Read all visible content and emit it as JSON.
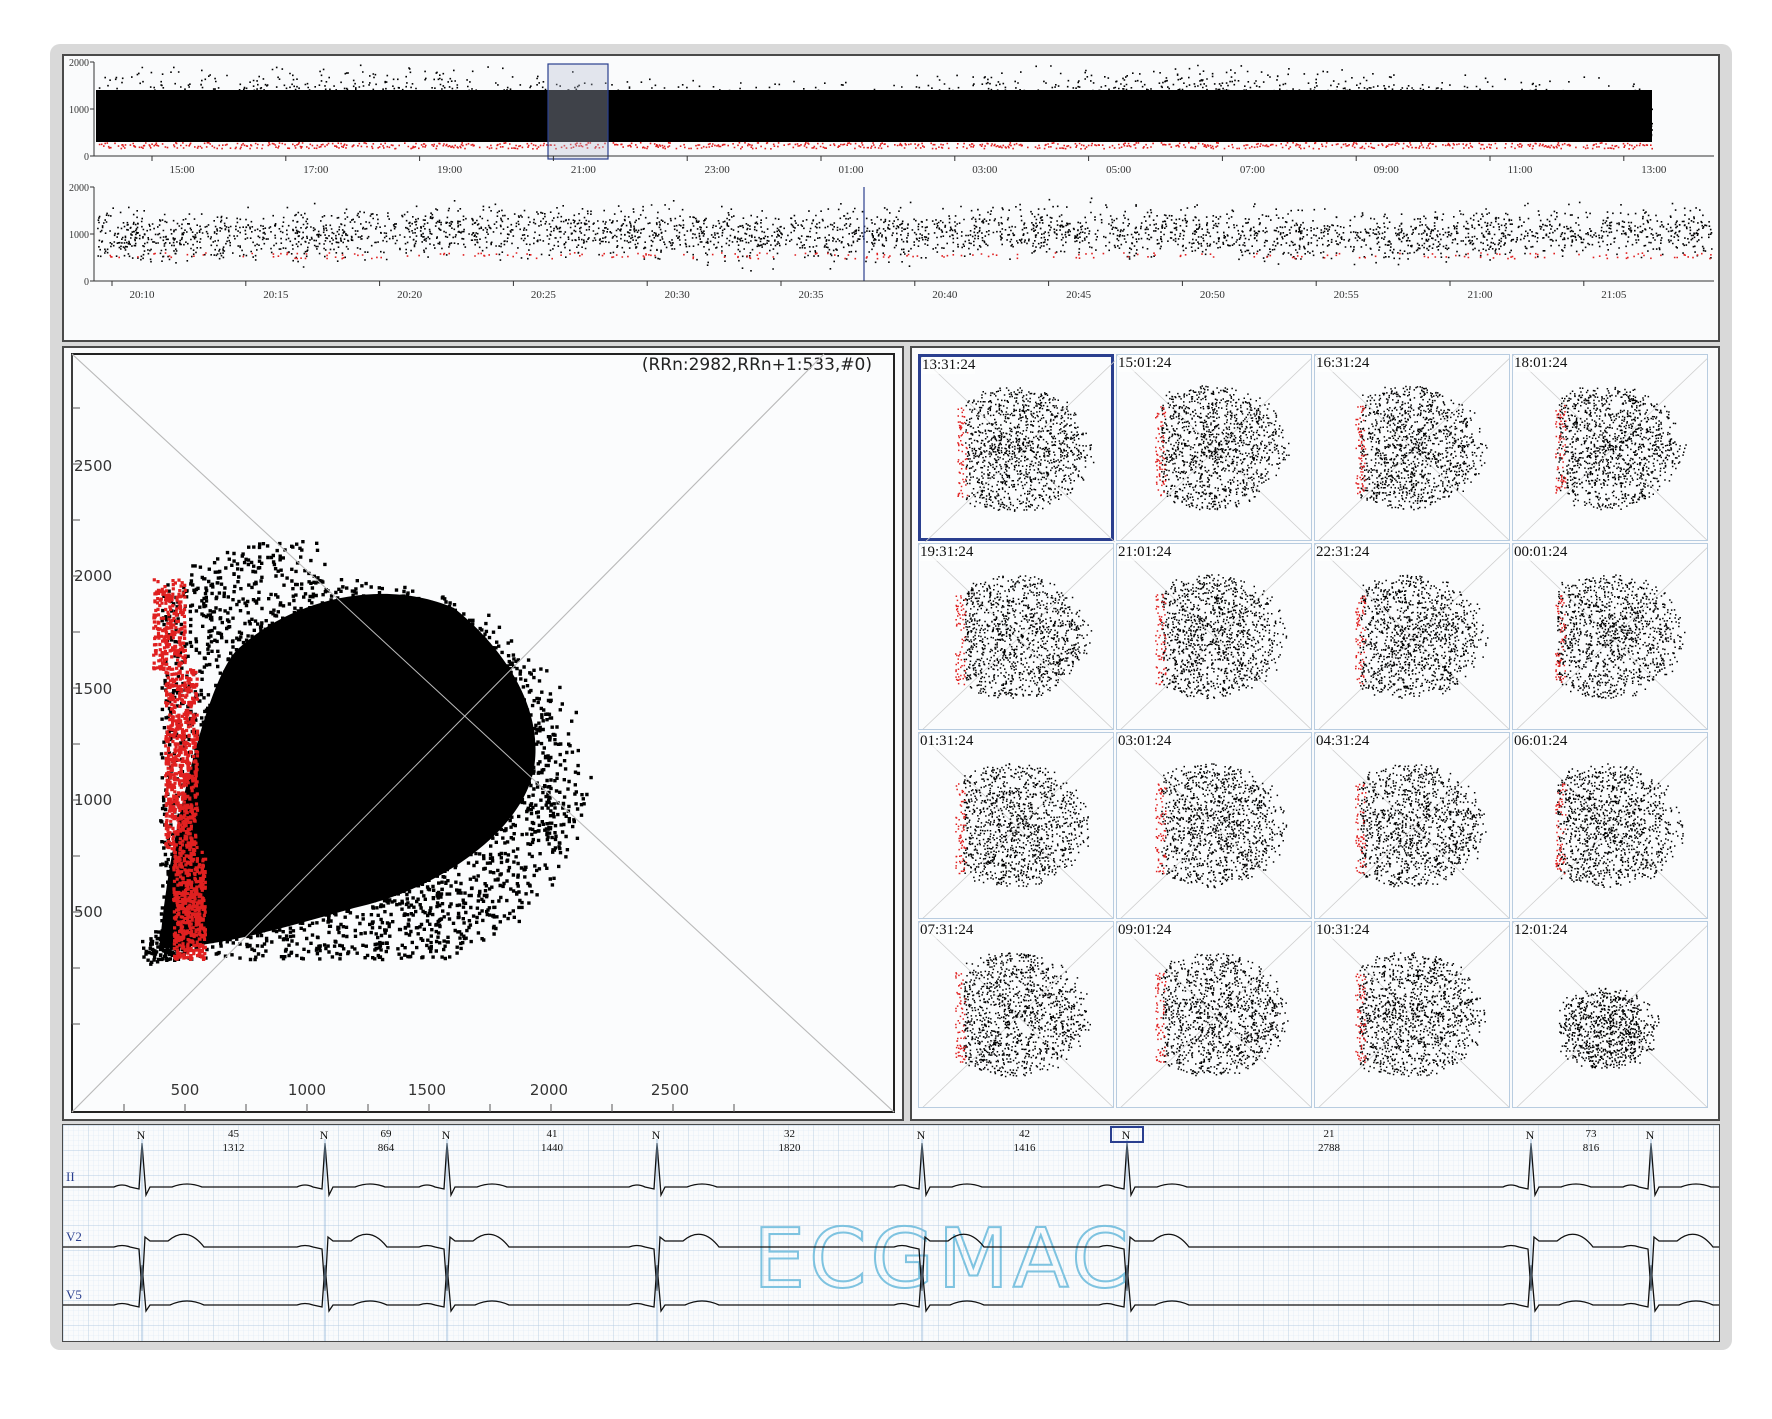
{
  "trend_full": {
    "y_ticks": [
      "2000",
      "1000",
      "0"
    ],
    "x_ticks": [
      "15:00",
      "17:00",
      "19:00",
      "21:00",
      "23:00",
      "01:00",
      "03:00",
      "05:00",
      "07:00",
      "09:00",
      "11:00",
      "13:00"
    ]
  },
  "trend_zoom": {
    "y_ticks": [
      "2000",
      "1000",
      "0"
    ],
    "x_ticks": [
      "20:10",
      "20:15",
      "20:20",
      "20:25",
      "20:30",
      "20:35",
      "20:40",
      "20:45",
      "20:50",
      "20:55",
      "21:00",
      "21:05"
    ]
  },
  "scatter": {
    "readout": "(RRn:2982,RRn+1:533,#0)",
    "x_ticks": [
      "500",
      "1000",
      "1500",
      "2000",
      "2500"
    ],
    "y_ticks": [
      "2500",
      "2000",
      "1500",
      "1000",
      "500"
    ]
  },
  "grid": {
    "selected_index": 0,
    "tiles": [
      "13:31:24",
      "15:01:24",
      "16:31:24",
      "18:01:24",
      "19:31:24",
      "21:01:24",
      "22:31:24",
      "00:01:24",
      "01:31:24",
      "03:01:24",
      "04:31:24",
      "06:01:24",
      "07:31:24",
      "09:01:24",
      "10:31:24",
      "12:01:24"
    ]
  },
  "ecg": {
    "watermark": "ECGMAC",
    "leads": [
      "II",
      "V2",
      "V5"
    ],
    "beat_labels": [
      "N",
      "N",
      "N",
      "N",
      "N",
      "N",
      "N",
      "N"
    ],
    "selected_beat": 5,
    "intervals": [
      {
        "hr": "45",
        "rr": "1312"
      },
      {
        "hr": "69",
        "rr": "864"
      },
      {
        "hr": "41",
        "rr": "1440"
      },
      {
        "hr": "32",
        "rr": "1820"
      },
      {
        "hr": "42",
        "rr": "1416"
      },
      {
        "hr": "21",
        "rr": "2788"
      },
      {
        "hr": "73",
        "rr": "816"
      }
    ]
  },
  "colors": {
    "normal_points": "#000000",
    "ectopic_points": "#e02020",
    "selection_border": "#2a3f8f",
    "ecg_grid": "#c6d9ec",
    "watermark": "#7ec3e0"
  }
}
